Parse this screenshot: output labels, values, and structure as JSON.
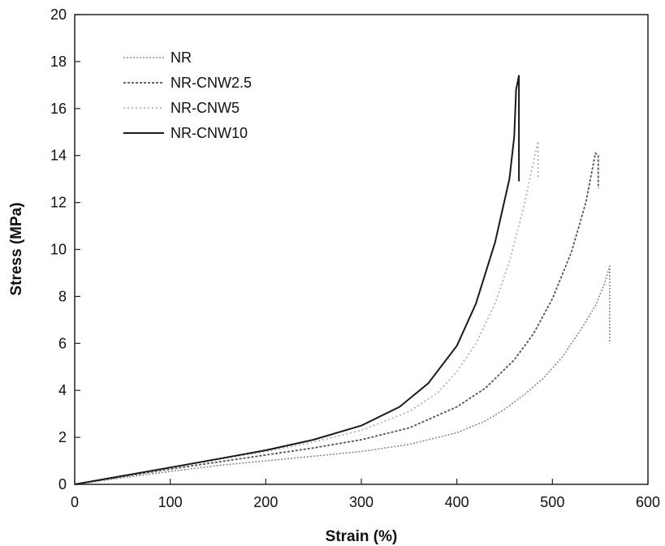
{
  "chart_data": {
    "type": "line",
    "xlabel": "Strain (%)",
    "ylabel": "Stress (MPa)",
    "xlim": [
      0,
      600
    ],
    "ylim": [
      0,
      20
    ],
    "xticks": [
      0,
      100,
      200,
      300,
      400,
      500,
      600
    ],
    "yticks": [
      0,
      2,
      4,
      6,
      8,
      10,
      12,
      14,
      16,
      18,
      20
    ],
    "grid": false,
    "legend_position": "top-left",
    "series": [
      {
        "name": "NR",
        "color": "#8a8a8a",
        "dash": "2,2",
        "width": 1.6,
        "x": [
          0,
          50,
          100,
          150,
          200,
          250,
          300,
          350,
          400,
          430,
          450,
          470,
          490,
          510,
          530,
          545,
          555,
          560,
          560
        ],
        "y": [
          0,
          0.28,
          0.55,
          0.8,
          1.0,
          1.2,
          1.4,
          1.7,
          2.2,
          2.7,
          3.2,
          3.8,
          4.5,
          5.4,
          6.6,
          7.6,
          8.6,
          9.3,
          6.0
        ]
      },
      {
        "name": "NR-CNW2.5",
        "color": "#555555",
        "dash": "3,2",
        "width": 1.8,
        "x": [
          0,
          50,
          100,
          150,
          200,
          250,
          300,
          350,
          400,
          430,
          460,
          480,
          500,
          520,
          535,
          545,
          548,
          548
        ],
        "y": [
          0,
          0.33,
          0.65,
          0.95,
          1.25,
          1.55,
          1.9,
          2.4,
          3.3,
          4.1,
          5.3,
          6.4,
          7.9,
          9.9,
          12.0,
          14.1,
          14.0,
          12.6
        ]
      },
      {
        "name": "NR-CNW5",
        "color": "#aaaaaa",
        "dash": "2,3",
        "width": 1.6,
        "x": [
          0,
          50,
          100,
          150,
          200,
          250,
          300,
          350,
          380,
          400,
          420,
          440,
          455,
          470,
          480,
          485,
          485
        ],
        "y": [
          0,
          0.35,
          0.7,
          1.05,
          1.4,
          1.8,
          2.3,
          3.1,
          3.9,
          4.8,
          6.0,
          7.7,
          9.5,
          11.8,
          13.7,
          14.6,
          13.0
        ]
      },
      {
        "name": "NR-CNW10",
        "color": "#1a1a1a",
        "dash": "",
        "width": 2.0,
        "x": [
          0,
          50,
          100,
          150,
          200,
          250,
          300,
          340,
          370,
          400,
          420,
          440,
          455,
          460,
          462,
          465,
          465
        ],
        "y": [
          0,
          0.36,
          0.72,
          1.08,
          1.45,
          1.9,
          2.5,
          3.3,
          4.3,
          5.9,
          7.7,
          10.3,
          13.0,
          14.8,
          16.8,
          17.4,
          12.9
        ]
      }
    ]
  }
}
